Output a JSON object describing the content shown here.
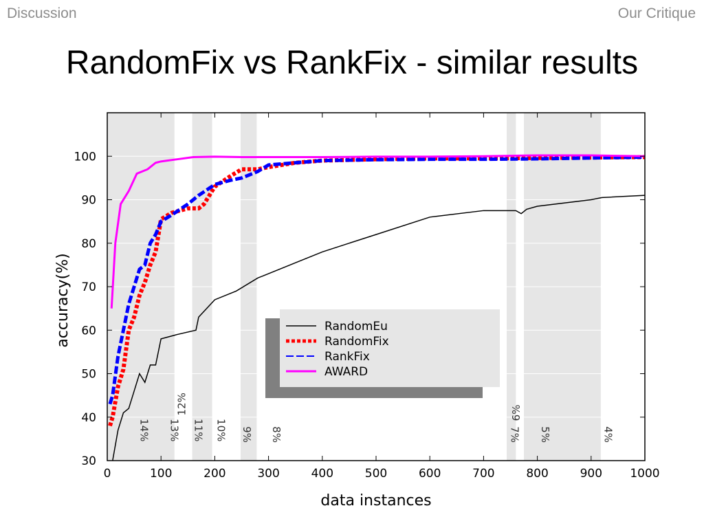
{
  "header": {
    "left": "Discussion",
    "right": "Our Critique"
  },
  "title": "RandomFix vs RankFix - similar results",
  "chart_data": {
    "type": "line",
    "xlabel": "data instances",
    "ylabel": "accuracy(%)",
    "xlim": [
      0,
      1000
    ],
    "ylim": [
      30,
      110
    ],
    "xticks": [
      0,
      100,
      200,
      300,
      400,
      500,
      600,
      700,
      800,
      900,
      1000
    ],
    "yticks": [
      30,
      40,
      50,
      60,
      70,
      80,
      90,
      100
    ],
    "grid": true,
    "legend_position": "center",
    "shaded_bands": [
      [
        0,
        125
      ],
      [
        158,
        195
      ],
      [
        248,
        278
      ],
      [
        743,
        760
      ],
      [
        775,
        918
      ]
    ],
    "annotations": [
      {
        "text": "14%",
        "x": 62,
        "y": 37,
        "rotated": true
      },
      {
        "text": "12%",
        "x": 145,
        "y": 43,
        "rotated": true,
        "flipped": true
      },
      {
        "text": "13%",
        "x": 118,
        "y": 37,
        "rotated": true
      },
      {
        "text": "11%",
        "x": 163,
        "y": 37,
        "rotated": true
      },
      {
        "text": "10%",
        "x": 205,
        "y": 37,
        "rotated": true
      },
      {
        "text": "9%",
        "x": 253,
        "y": 36,
        "rotated": true
      },
      {
        "text": "8%",
        "x": 308,
        "y": 36,
        "rotated": true
      },
      {
        "text": "6%",
        "x": 767,
        "y": 41,
        "rotated": true,
        "flipped": true
      },
      {
        "text": "7%",
        "x": 751,
        "y": 36,
        "rotated": true
      },
      {
        "text": "5%",
        "x": 808,
        "y": 36,
        "rotated": true
      },
      {
        "text": "4%",
        "x": 925,
        "y": 36,
        "rotated": true
      }
    ],
    "series": [
      {
        "name": "RandomEu",
        "color": "#000000",
        "style": "solid",
        "x": [
          10,
          20,
          30,
          40,
          50,
          60,
          70,
          80,
          90,
          100,
          130,
          165,
          170,
          200,
          240,
          280,
          300,
          400,
          500,
          600,
          700,
          760,
          770,
          780,
          800,
          900,
          920,
          1000
        ],
        "y": [
          30,
          37,
          41,
          42,
          46,
          50,
          48,
          52,
          52,
          58,
          59,
          60,
          63,
          67,
          69,
          72,
          73,
          78,
          82,
          86,
          87.5,
          87.5,
          86.8,
          87.8,
          88.5,
          90,
          90.5,
          91
        ]
      },
      {
        "name": "RandomFix",
        "color": "#ff0000",
        "style": "dotted",
        "x": [
          5,
          10,
          20,
          30,
          40,
          50,
          60,
          70,
          80,
          90,
          100,
          120,
          150,
          170,
          180,
          200,
          230,
          250,
          280,
          300,
          350,
          400,
          500,
          600,
          700,
          800,
          900,
          1000
        ],
        "y": [
          38,
          40,
          47,
          51,
          60,
          63,
          68,
          71,
          75,
          78,
          85.5,
          87,
          88,
          88,
          89,
          93,
          95.5,
          97,
          97,
          97.5,
          98.5,
          99,
          99.3,
          99.5,
          99.5,
          99.6,
          99.7,
          99.8
        ]
      },
      {
        "name": "RankFix",
        "color": "#0000ff",
        "style": "dashed",
        "x": [
          5,
          10,
          20,
          30,
          40,
          50,
          60,
          70,
          80,
          90,
          100,
          120,
          150,
          170,
          200,
          230,
          250,
          280,
          300,
          350,
          400,
          500,
          600,
          700,
          800,
          900,
          1000
        ],
        "y": [
          43,
          45,
          54,
          60,
          66,
          70,
          74,
          75,
          80,
          82,
          85,
          86.5,
          89,
          91,
          93.5,
          94.5,
          95,
          96.5,
          98,
          98.5,
          99,
          99.2,
          99.3,
          99.3,
          99.4,
          99.6,
          99.8
        ]
      },
      {
        "name": "AWARD",
        "color": "#ff00ff",
        "style": "solid",
        "x": [
          8,
          15,
          25,
          40,
          55,
          65,
          75,
          90,
          100,
          130,
          160,
          200,
          250,
          300,
          400,
          500,
          600,
          700,
          800,
          900,
          1000
        ],
        "y": [
          65,
          80,
          89,
          92,
          96,
          96.5,
          97,
          98.5,
          98.8,
          99.3,
          99.8,
          99.9,
          99.8,
          99.8,
          99.8,
          99.9,
          99.9,
          100,
          100.2,
          100.2,
          100
        ]
      }
    ]
  }
}
